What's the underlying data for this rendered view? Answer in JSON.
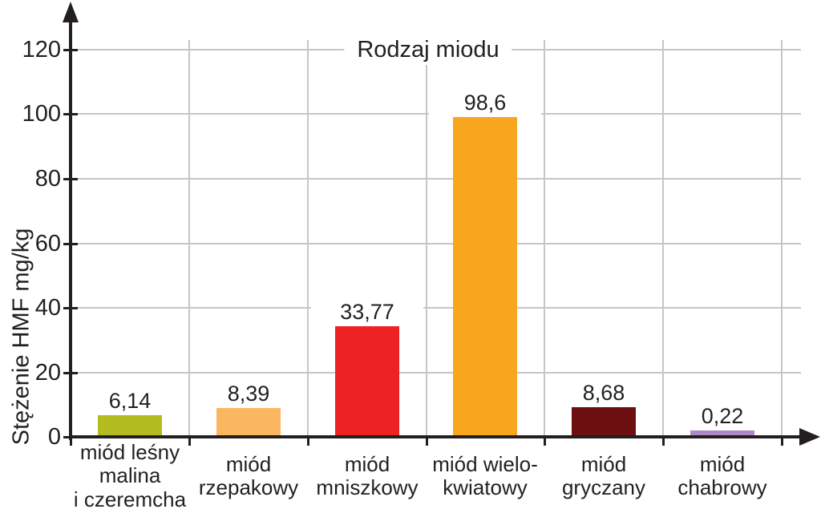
{
  "chart_data": {
    "type": "bar",
    "title": "Rodzaj miodu",
    "xlabel": "",
    "ylabel": "Stężenie HMF mg/kg",
    "y_ticks": [
      0,
      20,
      40,
      60,
      80,
      100,
      120
    ],
    "ylim": [
      0,
      130
    ],
    "grid": true,
    "legend": null,
    "categories": [
      [
        "miód leśny",
        "malina",
        "i czeremcha"
      ],
      [
        "miód",
        "rzepakowy"
      ],
      [
        "miód",
        "mniszkowy"
      ],
      [
        "miód wielo-",
        "kwiatowy"
      ],
      [
        "miód",
        "gryczany"
      ],
      [
        "miód",
        "chabrowy"
      ]
    ],
    "values": [
      6.14,
      8.39,
      33.77,
      98.6,
      8.68,
      0.22
    ],
    "value_labels": [
      "6,14",
      "8,39",
      "33,77",
      "98,6",
      "8,68",
      "0,22"
    ],
    "bar_colors": [
      "#b2bc1f",
      "#fbb661",
      "#ed2224",
      "#f8a61e",
      "#6b0f11",
      "#ad88c5"
    ]
  },
  "colors": {
    "background": "#ffffff",
    "grid": "#c6c6c6",
    "axis": "#231f20",
    "text": "#231f20"
  }
}
